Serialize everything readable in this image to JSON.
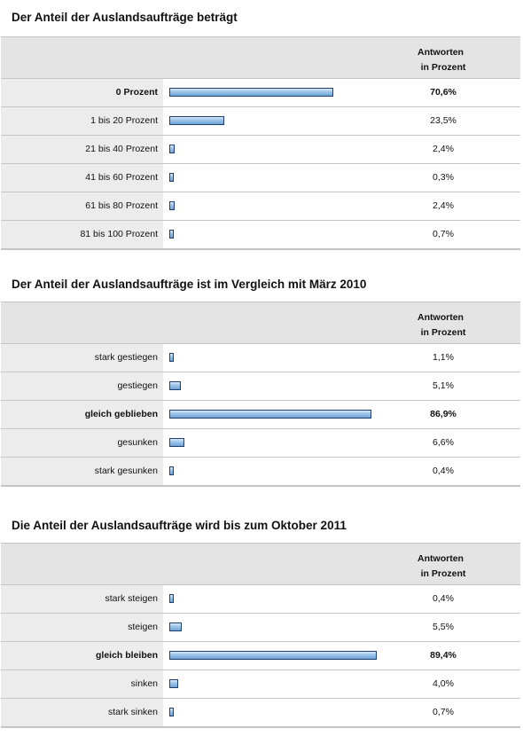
{
  "chart_data": [
    {
      "type": "bar",
      "orientation": "horizontal",
      "title": "Der Anteil der Auslandsaufträge beträgt",
      "value_header": [
        "Antworten",
        "in Prozent"
      ],
      "categories": [
        "0 Prozent",
        "1 bis 20 Prozent",
        "21 bis 40 Prozent",
        "41 bis 60 Prozent",
        "61 bis 80 Prozent",
        "81 bis 100 Prozent"
      ],
      "values": [
        70.6,
        23.5,
        2.4,
        0.3,
        2.4,
        0.7
      ],
      "value_labels": [
        "70,6%",
        "23,5%",
        "2,4%",
        "0,3%",
        "2,4%",
        "0,7%"
      ],
      "highlight": [
        0
      ]
    },
    {
      "type": "bar",
      "orientation": "horizontal",
      "title": "Der Anteil der Auslandsaufträge ist im Vergleich mit März 2010",
      "value_header": [
        "Antworten",
        "in Prozent"
      ],
      "categories": [
        "stark gestiegen",
        "gestiegen",
        "gleich geblieben",
        "gesunken",
        "stark gesunken"
      ],
      "values": [
        1.1,
        5.1,
        86.9,
        6.6,
        0.4
      ],
      "value_labels": [
        "1,1%",
        "5,1%",
        "86,9%",
        "6,6%",
        "0,4%"
      ],
      "highlight": [
        2
      ]
    },
    {
      "type": "bar",
      "orientation": "horizontal",
      "title": "Die Anteil der Auslandsaufträge wird bis zum Oktober 2011",
      "value_header": [
        "Antworten",
        "in Prozent"
      ],
      "categories": [
        "stark steigen",
        "steigen",
        "gleich bleiben",
        "sinken",
        "stark sinken"
      ],
      "values": [
        0.4,
        5.5,
        89.4,
        4.0,
        0.7
      ],
      "value_labels": [
        "0,4%",
        "5,5%",
        "89,4%",
        "4,0%",
        "0,7%"
      ],
      "highlight": [
        2
      ]
    }
  ],
  "colors": {
    "bar_fill_top": "#d6e7f7",
    "bar_fill_bottom": "#6fa3d6",
    "bar_border": "#1f3f70",
    "header_bg": "#e4e4e4",
    "label_bg": "#ececec",
    "grid": "#c4c4c4"
  }
}
